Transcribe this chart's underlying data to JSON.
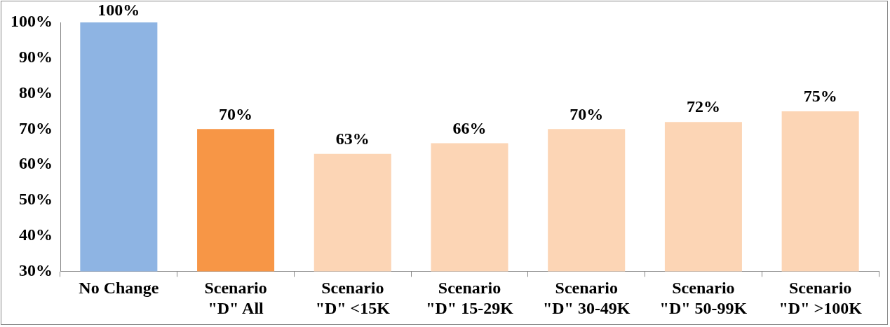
{
  "chart_data": {
    "type": "bar",
    "categories": [
      "No Change",
      "Scenario \"D\" All",
      "Scenario \"D\" <15K",
      "Scenario \"D\" 15-29K",
      "Scenario \"D\" 30-49K",
      "Scenario \"D\" 50-99K",
      "Scenario \"D\" >100K"
    ],
    "values": [
      100,
      70,
      63,
      66,
      70,
      72,
      75
    ],
    "colors": [
      "#8eb4e3",
      "#f79646",
      "#fcd5b5",
      "#fcd5b5",
      "#fcd5b5",
      "#fcd5b5",
      "#fcd5b5"
    ],
    "ylim": [
      30,
      100
    ],
    "yticks": [
      {
        "value": 30,
        "label": "30%"
      },
      {
        "value": 40,
        "label": "40%"
      },
      {
        "value": 50,
        "label": "50%"
      },
      {
        "value": 60,
        "label": "60%"
      },
      {
        "value": 70,
        "label": "70%"
      },
      {
        "value": 80,
        "label": "80%"
      },
      {
        "value": 90,
        "label": "90%"
      },
      {
        "value": 100,
        "label": "100%"
      }
    ],
    "value_labels": [
      "100%",
      "70%",
      "63%",
      "66%",
      "70%",
      "72%",
      "75%"
    ],
    "grid": false,
    "legend": false
  }
}
